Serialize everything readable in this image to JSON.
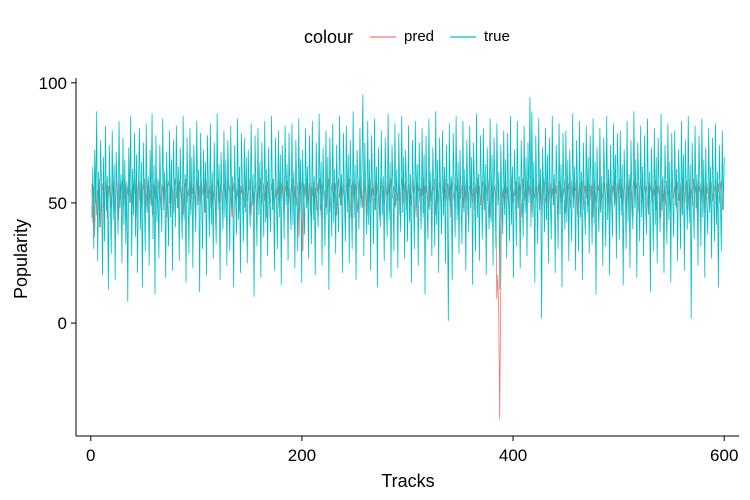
{
  "chart_data": {
    "type": "line",
    "title": "",
    "xlabel": "Tracks",
    "ylabel": "Popularity",
    "xlim": [
      -14,
      614
    ],
    "ylim": [
      -47,
      102
    ],
    "x_ticks": [
      0,
      200,
      400,
      600
    ],
    "x_tick_labels": [
      "0",
      "200",
      "400",
      "600"
    ],
    "y_ticks": [
      0,
      50,
      100
    ],
    "y_tick_labels": [
      "0",
      "50",
      "100"
    ],
    "grid": false,
    "legend": {
      "title": "colour",
      "position": "top",
      "entries": [
        "pred",
        "true"
      ]
    },
    "series": [
      {
        "name": "pred",
        "color": "#F8766D",
        "values": [
          58,
          42,
          57,
          36,
          59,
          45,
          55,
          52,
          60,
          40,
          54,
          58,
          50,
          47,
          56,
          59,
          44,
          57,
          53,
          60,
          48,
          55,
          59,
          51,
          46,
          57,
          60,
          54,
          43,
          58,
          52,
          56,
          60,
          49,
          55,
          58,
          45,
          57,
          53,
          59,
          50,
          56,
          47,
          58,
          54,
          60,
          52,
          44,
          57,
          59,
          51,
          55,
          48,
          58,
          56,
          60,
          46,
          53,
          57,
          59,
          50,
          54,
          58,
          45,
          56,
          60,
          52,
          57,
          49,
          55,
          59,
          53,
          47,
          58,
          56,
          51,
          60,
          54,
          44,
          57,
          59,
          50,
          55,
          58,
          53,
          46,
          57,
          60,
          52,
          56,
          48,
          59,
          54,
          57,
          51,
          45,
          58,
          55,
          60,
          50,
          56,
          53,
          59,
          47,
          57,
          54,
          58,
          52,
          44,
          60,
          56,
          51,
          57,
          49,
          59,
          55,
          53,
          58,
          46,
          56,
          60,
          52,
          54,
          57,
          48,
          59,
          55,
          51,
          58,
          45,
          56,
          60,
          53,
          50,
          57,
          59,
          47,
          55,
          58,
          52,
          56,
          49,
          60,
          54,
          57,
          51,
          44,
          59,
          55,
          58,
          50,
          56,
          53,
          60,
          46,
          57,
          54,
          58,
          52,
          48,
          59,
          56,
          51,
          57,
          55,
          60,
          45,
          53,
          58,
          50,
          56,
          59,
          47,
          54,
          57,
          52,
          60,
          49,
          55,
          58,
          51,
          57,
          44,
          59,
          56,
          53,
          50,
          58,
          55,
          60,
          46,
          57,
          52,
          54,
          59,
          48,
          56,
          58,
          51,
          60,
          45,
          55,
          57,
          53,
          59,
          50,
          56,
          47,
          58,
          54,
          60,
          52,
          57,
          49,
          55,
          59,
          36,
          57,
          60,
          54,
          30,
          58,
          52,
          56,
          60,
          49,
          55,
          58,
          45,
          57,
          53,
          59,
          50,
          56,
          47,
          58,
          54,
          60,
          52,
          44,
          57,
          59,
          51,
          55,
          48,
          58,
          56,
          60,
          46,
          53,
          57,
          59,
          50,
          54,
          58,
          45,
          56,
          60,
          52,
          57,
          49,
          55,
          59,
          53,
          47,
          58,
          56,
          51,
          60,
          54,
          44,
          57,
          59,
          50,
          55,
          58,
          53,
          46,
          57,
          60,
          52,
          56,
          48,
          59,
          54,
          57,
          51,
          45,
          58,
          55,
          60,
          50,
          56,
          53,
          59,
          47,
          57,
          54,
          58,
          52,
          44,
          60,
          56,
          51,
          57,
          49,
          59,
          55,
          53,
          58,
          46,
          56,
          60,
          52,
          54,
          57,
          48,
          59,
          55,
          51,
          58,
          45,
          56,
          60,
          53,
          50,
          57,
          59,
          47,
          55,
          58,
          52,
          56,
          49,
          60,
          54,
          57,
          51,
          44,
          59,
          55,
          58,
          50,
          56,
          53,
          60,
          46,
          57,
          54,
          58,
          52,
          48,
          59,
          56,
          51,
          57,
          55,
          60,
          45,
          53,
          58,
          50,
          56,
          59,
          47,
          54,
          57,
          52,
          60,
          49,
          55,
          58,
          51,
          57,
          44,
          59,
          56,
          53,
          50,
          58,
          55,
          60,
          46,
          57,
          52,
          54,
          59,
          48,
          56,
          58,
          51,
          60,
          45,
          55,
          57,
          53,
          59,
          50,
          56,
          47,
          58,
          54,
          60,
          52,
          57,
          49,
          55,
          59,
          53,
          47,
          58,
          56,
          51,
          60,
          54,
          44,
          57,
          59,
          50,
          55,
          58,
          53,
          10,
          20,
          5,
          -40,
          8,
          57,
          52,
          56,
          48,
          59,
          54,
          57,
          51,
          45,
          58,
          55,
          61,
          50,
          56,
          53,
          59,
          47,
          57,
          54,
          58,
          52,
          44,
          60,
          56,
          51,
          57,
          49,
          59,
          55,
          53,
          58,
          46,
          56,
          60,
          52,
          54,
          57,
          48,
          59,
          55,
          51,
          58,
          45,
          56,
          60,
          53,
          50,
          57,
          59,
          47,
          55,
          58,
          52,
          56,
          49,
          60,
          54,
          57,
          51,
          44,
          59,
          55,
          58,
          50,
          56,
          53,
          60,
          46,
          57,
          54,
          58,
          52,
          48,
          59,
          56,
          51,
          57,
          55,
          60,
          45,
          53,
          58,
          50,
          56,
          59,
          47,
          54,
          57,
          52,
          60,
          49,
          55,
          58,
          51,
          57,
          44,
          59,
          56,
          53,
          50,
          58,
          55,
          60,
          46,
          57,
          52,
          54,
          59,
          48,
          56,
          58,
          51,
          60,
          45,
          55,
          57,
          53,
          59,
          50,
          56,
          47,
          58,
          54,
          60,
          52,
          57,
          49,
          55,
          59,
          53,
          47,
          58,
          56,
          51,
          60,
          54,
          44,
          57,
          59,
          50,
          55,
          58,
          53,
          46,
          57,
          60,
          52,
          56,
          48,
          59,
          54,
          57,
          51,
          45,
          58,
          55,
          60,
          50,
          56,
          53,
          59,
          47,
          57,
          54,
          58,
          52,
          44,
          60,
          56,
          51,
          57,
          49,
          59,
          55,
          53,
          58,
          46,
          56,
          60,
          52,
          54,
          57,
          48,
          59,
          55,
          51,
          58,
          45,
          56,
          60,
          53,
          50,
          57,
          59,
          47,
          55,
          58,
          52,
          56,
          49,
          60,
          54,
          57,
          51,
          44,
          59,
          55,
          58,
          50,
          56,
          53,
          60,
          46,
          57,
          54,
          58,
          52,
          48,
          59,
          56,
          51,
          57,
          55,
          60,
          45,
          53,
          58,
          50,
          56,
          59,
          47,
          54,
          57
        ]
      },
      {
        "name": "true",
        "color": "#00BFC4",
        "values": [
          44,
          65,
          31,
          72,
          50,
          88,
          26,
          63,
          40,
          76,
          57,
          20,
          69,
          34,
          82,
          47,
          61,
          14,
          74,
          52,
          29,
          80,
          43,
          66,
          18,
          71,
          55,
          37,
          84,
          48,
          62,
          25,
          77,
          41,
          68,
          33,
          59,
          9,
          73,
          50,
          86,
          28,
          64,
          45,
          79,
          36,
          70,
          21,
          58,
          81,
          39,
          67,
          15,
          75,
          53,
          30,
          83,
          46,
          61,
          24,
          72,
          49,
          87,
          35,
          66,
          12,
          78,
          42,
          60,
          27,
          74,
          54,
          38,
          85,
          47,
          63,
          19,
          71,
          51,
          32,
          80,
          44,
          68,
          22,
          76,
          56,
          40,
          82,
          48,
          65,
          26,
          73,
          50,
          35,
          86,
          43,
          62,
          17,
          77,
          53,
          29,
          81,
          45,
          69,
          23,
          74,
          57,
          38,
          84,
          49,
          64,
          13,
          79,
          52,
          31,
          72,
          46,
          67,
          20,
          78,
          55,
          36,
          83,
          41,
          63,
          27,
          75,
          50,
          33,
          87,
          47,
          66,
          18,
          71,
          54,
          39,
          80,
          44,
          68,
          24,
          76,
          58,
          30,
          82,
          48,
          61,
          15,
          74,
          52,
          37,
          85,
          43,
          65,
          21,
          79,
          56,
          34,
          77,
          46,
          69,
          25,
          72,
          51,
          40,
          83,
          49,
          62,
          11,
          78,
          54,
          32,
          81,
          45,
          67,
          19,
          75,
          57,
          36,
          84,
          42,
          64,
          28,
          73,
          50,
          38,
          86,
          47,
          60,
          22,
          77,
          53,
          31,
          80,
          44,
          70,
          16,
          74,
          58,
          35,
          82,
          49,
          66,
          26,
          79,
          52,
          39,
          83,
          41,
          63,
          23,
          76,
          55,
          30,
          85,
          46,
          68,
          17,
          72,
          51,
          37,
          81,
          48,
          65,
          27,
          78,
          56,
          33,
          84,
          43,
          61,
          20,
          75,
          50,
          40,
          87,
          47,
          67,
          24,
          73,
          54,
          32,
          80,
          45,
          69,
          14,
          77,
          57,
          36,
          83,
          42,
          64,
          29,
          74,
          51,
          38,
          86,
          49,
          62,
          21,
          79,
          53,
          34,
          82,
          46,
          70,
          25,
          76,
          55,
          31,
          88,
          44,
          66,
          18,
          72,
          58,
          39,
          81,
          48,
          63,
          95,
          28,
          75,
          52,
          37,
          84,
          41,
          68,
          22,
          78,
          56,
          33,
          85,
          47,
          65,
          15,
          73,
          50,
          40,
          80,
          45,
          61,
          26,
          77,
          54,
          36,
          87,
          43,
          67,
          19,
          74,
          57,
          30,
          83,
          49,
          64,
          23,
          79,
          51,
          38,
          86,
          46,
          69,
          27,
          72,
          55,
          34,
          82,
          42,
          62,
          17,
          76,
          58,
          31,
          84,
          48,
          66,
          24,
          75,
          53,
          39,
          81,
          44,
          70,
          12,
          78,
          50,
          35,
          85,
          47,
          63,
          28,
          73,
          56,
          32,
          88,
          41,
          68,
          21,
          77,
          54,
          37,
          80,
          45,
          65,
          25,
          74,
          52,
          1,
          83,
          49,
          61,
          18,
          79,
          57,
          36,
          86,
          43,
          67,
          29,
          72,
          51,
          33,
          84,
          46,
          64,
          22,
          76,
          55,
          38,
          82,
          48,
          69,
          16,
          75,
          53,
          30,
          87,
          44,
          62,
          26,
          78,
          58,
          35,
          81,
          47,
          66,
          20,
          73,
          50,
          39,
          85,
          42,
          70,
          24,
          77,
          56,
          31,
          83,
          49,
          63,
          14,
          74,
          54,
          37,
          80,
          45,
          68,
          27,
          79,
          52,
          34,
          86,
          41,
          65,
          19,
          72,
          57,
          32,
          84,
          48,
          61,
          23,
          76,
          55,
          36,
          82,
          46,
          69,
          28,
          75,
          50,
          94,
          40,
          88,
          44,
          67,
          17,
          78,
          53,
          33,
          85,
          47,
          64,
          2,
          73,
          56,
          38,
          81,
          43,
          70,
          25,
          77,
          51,
          35,
          86,
          49,
          62,
          21,
          74,
          58,
          31,
          83,
          45,
          66,
          15,
          79,
          54,
          39,
          80,
          42,
          68,
          26,
          72,
          52,
          34,
          87,
          48,
          65,
          22,
          76,
          57,
          30,
          84,
          44,
          63,
          18,
          75,
          50,
          37,
          82,
          46,
          69,
          29,
          78,
          55,
          33,
          85,
          41,
          67,
          12,
          73,
          53,
          38,
          81,
          47,
          61,
          24,
          77,
          56,
          32,
          86,
          43,
          64,
          20,
          74,
          51,
          36,
          83,
          49,
          70,
          27,
          79,
          58,
          35,
          80,
          45,
          66,
          16,
          72,
          54,
          31,
          84,
          42,
          62,
          23,
          76,
          52,
          39,
          88,
          48,
          68,
          19,
          75,
          57,
          34,
          82,
          44,
          65,
          28,
          78,
          50,
          37,
          85,
          46,
          63,
          13,
          73,
          55,
          30,
          81,
          41,
          69,
          25,
          77,
          53,
          38,
          87,
          47,
          61,
          21,
          74,
          56,
          33,
          83,
          43,
          67,
          17,
          79,
          51,
          36,
          80,
          49,
          64,
          26,
          72,
          58,
          31,
          84,
          45,
          70,
          22,
          76,
          54,
          39,
          86,
          42,
          66,
          2,
          75,
          52,
          35,
          82,
          48,
          62,
          24,
          78,
          57,
          32,
          85,
          44,
          68,
          19,
          73,
          50,
          37,
          81,
          46,
          65,
          27,
          77,
          55,
          34,
          83,
          41,
          63,
          15,
          74,
          53,
          30,
          80,
          47,
          69
        ]
      }
    ]
  }
}
